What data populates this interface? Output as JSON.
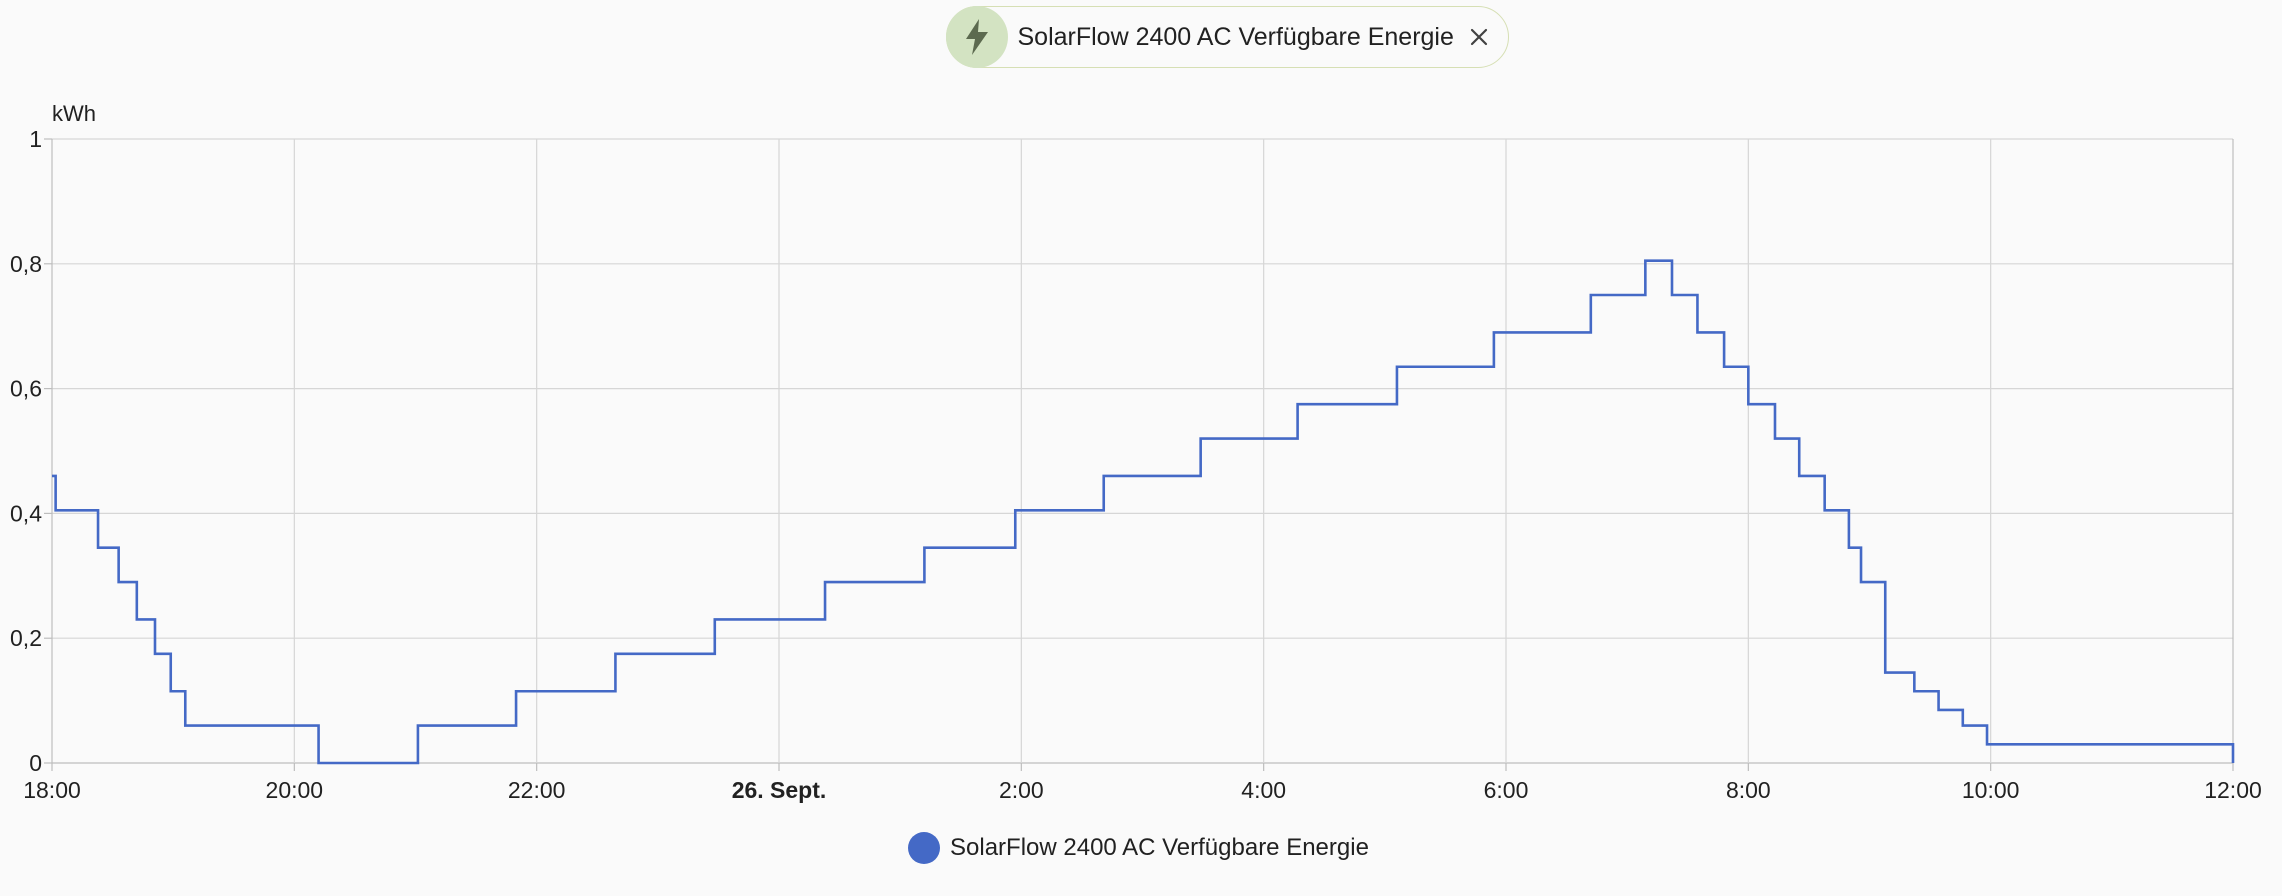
{
  "filter_chip": {
    "label": "SolarFlow 2400 AC Verfügbare Energie",
    "icon": "lightning-bolt-icon",
    "close_icon": "close-icon"
  },
  "colors": {
    "series": "#4469c6",
    "grid": "#d6d6d6",
    "axis": "#bdbdbd",
    "chip_border": "#d6dfb4",
    "chip_icon_bg": "#d3e3c2",
    "chip_icon_fg": "#5c6a4f"
  },
  "legend": {
    "label": "SolarFlow 2400 AC Verfügbare Energie"
  },
  "chart_data": {
    "type": "line",
    "step": true,
    "ylabel": "kWh",
    "ylim": [
      0,
      1
    ],
    "yticks": [
      "0",
      "0,2",
      "0,4",
      "0,6",
      "0,8",
      "1"
    ],
    "xlim": [
      0,
      18
    ],
    "x_tick_labels": [
      {
        "x": 0,
        "label": "18:00",
        "bold": false
      },
      {
        "x": 2,
        "label": "20:00",
        "bold": false
      },
      {
        "x": 4,
        "label": "22:00",
        "bold": false
      },
      {
        "x": 6,
        "label": "26. Sept.",
        "bold": true
      },
      {
        "x": 8,
        "label": "2:00",
        "bold": false
      },
      {
        "x": 10,
        "label": "4:00",
        "bold": false
      },
      {
        "x": 12,
        "label": "6:00",
        "bold": false
      },
      {
        "x": 14,
        "label": "8:00",
        "bold": false
      },
      {
        "x": 16,
        "label": "10:00",
        "bold": false
      },
      {
        "x": 18,
        "label": "12:00",
        "bold": false
      }
    ],
    "grid": true,
    "series": [
      {
        "name": "SolarFlow 2400 AC Verfügbare Energie",
        "x": [
          0,
          0.03,
          0.38,
          0.55,
          0.7,
          0.85,
          0.98,
          1.1,
          2.2,
          3.02,
          3.83,
          4.65,
          5.47,
          6.38,
          7.2,
          7.95,
          8.68,
          9.48,
          10.28,
          11.1,
          11.9,
          12.7,
          13.15,
          13.37,
          13.58,
          13.8,
          14.0,
          14.22,
          14.42,
          14.63,
          14.83,
          14.93,
          15.13,
          15.37,
          15.57,
          15.77,
          15.97,
          18
        ],
        "y": [
          0.46,
          0.405,
          0.345,
          0.29,
          0.23,
          0.175,
          0.115,
          0.06,
          0.0,
          0.06,
          0.115,
          0.175,
          0.23,
          0.29,
          0.345,
          0.405,
          0.46,
          0.52,
          0.575,
          0.635,
          0.69,
          0.75,
          0.805,
          0.75,
          0.69,
          0.635,
          0.575,
          0.52,
          0.46,
          0.405,
          0.345,
          0.29,
          0.145,
          0.115,
          0.085,
          0.06,
          0.03,
          0.0
        ],
        "x_end": 18
      }
    ]
  }
}
